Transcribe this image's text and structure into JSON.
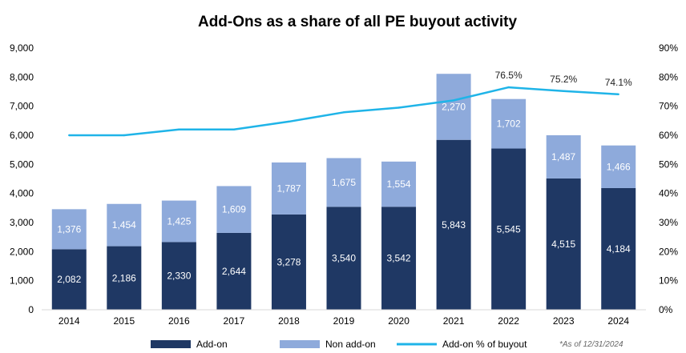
{
  "chart_data": {
    "type": "bar",
    "stacked": true,
    "title": "Add-Ons as a share of all PE buyout activity",
    "categories": [
      "2014",
      "2015",
      "2016",
      "2017",
      "2018",
      "2019",
      "2020",
      "2021",
      "2022",
      "2023",
      "2024"
    ],
    "series": [
      {
        "name": "Add-on",
        "color": "#1f3864",
        "values": [
          2082,
          2186,
          2330,
          2644,
          3278,
          3540,
          3542,
          5843,
          5545,
          4515,
          4184
        ]
      },
      {
        "name": "Non add-on",
        "color": "#8eaadb",
        "values": [
          1376,
          1454,
          1425,
          1609,
          1787,
          1675,
          1554,
          2270,
          1702,
          1487,
          1466
        ]
      }
    ],
    "line_series": {
      "name": "Add-on % of buyout",
      "color": "#1fb4e8",
      "axis": "right",
      "values": [
        60,
        60,
        62,
        62,
        64.7,
        67.9,
        69.5,
        72,
        76.5,
        75.2,
        74.1
      ],
      "labels": [
        "",
        "",
        "",
        "",
        "",
        "",
        "",
        "",
        "76.5%",
        "75.2%",
        "74.1%"
      ]
    },
    "left_axis": {
      "ylim": [
        0,
        9000
      ],
      "ticks": [
        0,
        1000,
        2000,
        3000,
        4000,
        5000,
        6000,
        7000,
        8000,
        9000
      ],
      "tick_labels": [
        "0",
        "1,000",
        "2,000",
        "3,000",
        "4,000",
        "5,000",
        "6,000",
        "7,000",
        "8,000",
        "9,000"
      ]
    },
    "right_axis": {
      "ylim": [
        0,
        90
      ],
      "ticks": [
        0,
        10,
        20,
        30,
        40,
        50,
        60,
        70,
        80,
        90
      ],
      "tick_labels": [
        "0%",
        "10%",
        "20%",
        "30%",
        "40%",
        "50%",
        "60%",
        "70%",
        "80%",
        "90%"
      ]
    },
    "bar_value_labels": {
      "Add-on": [
        "2,082",
        "2,186",
        "2,330",
        "2,644",
        "3,278",
        "3,540",
        "3,542",
        "5,843",
        "5,545",
        "4,515",
        "4,184"
      ],
      "Non add-on": [
        "1,376",
        "1,454",
        "1,425",
        "1,609",
        "1,787",
        "1,675",
        "1,554",
        "2,270",
        "1,702",
        "1,487",
        "1,466"
      ]
    },
    "legend": {
      "placement": "bottom",
      "items": [
        "Add-on",
        "Non add-on",
        "Add-on % of buyout"
      ]
    },
    "note": "*As of 12/31/2024",
    "grid": false
  }
}
